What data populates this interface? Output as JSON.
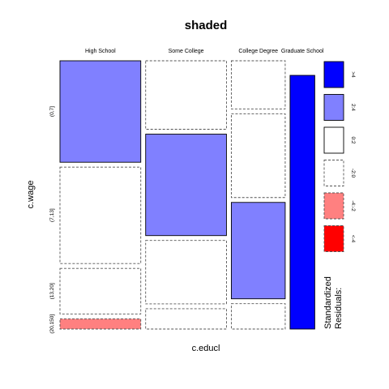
{
  "chart_data": {
    "type": "mosaic",
    "title": "shaded",
    "xlabel": "c.educl",
    "ylabel": "c.wage",
    "columns": [
      "High School",
      "Some College",
      "College Degree",
      "Graduate School"
    ],
    "rows": [
      "(0,7]",
      "(7,13]",
      "(13,20]",
      "(20,150]"
    ],
    "column_shares": [
      0.36,
      0.36,
      0.24,
      0.11
    ],
    "cell_shares": [
      [
        0.4,
        0.38,
        0.18,
        0.04
      ],
      [
        0.27,
        0.4,
        0.25,
        0.08
      ],
      [
        0.19,
        0.33,
        0.38,
        0.1
      ],
      [
        0.0,
        0.0,
        0.0,
        1.0
      ]
    ],
    "shading": [
      [
        "2:4",
        "-2:0",
        "-2:0",
        "-4:-2"
      ],
      [
        "-2:0",
        "2:4",
        "-2:0",
        "-2:0"
      ],
      [
        "-2:0",
        "-2:0",
        "2:4",
        "-2:0"
      ],
      [
        "-2:0",
        "-2:0",
        "-2:0",
        ">4"
      ]
    ],
    "legend": {
      "title_lines": [
        "Standardized",
        "Residuals:"
      ],
      "items": [
        {
          "label": ">4",
          "fill": "#0000ff",
          "dashed": false
        },
        {
          "label": "2:4",
          "fill": "#8080ff",
          "dashed": false
        },
        {
          "label": "0:2",
          "fill": "#ffffff",
          "dashed": false
        },
        {
          "label": "-2:0",
          "fill": "#ffffff",
          "dashed": true
        },
        {
          "label": "-4:-2",
          "fill": "#ff8080",
          "dashed": true
        },
        {
          "label": "<-4",
          "fill": "#ff0000",
          "dashed": true
        }
      ]
    }
  }
}
